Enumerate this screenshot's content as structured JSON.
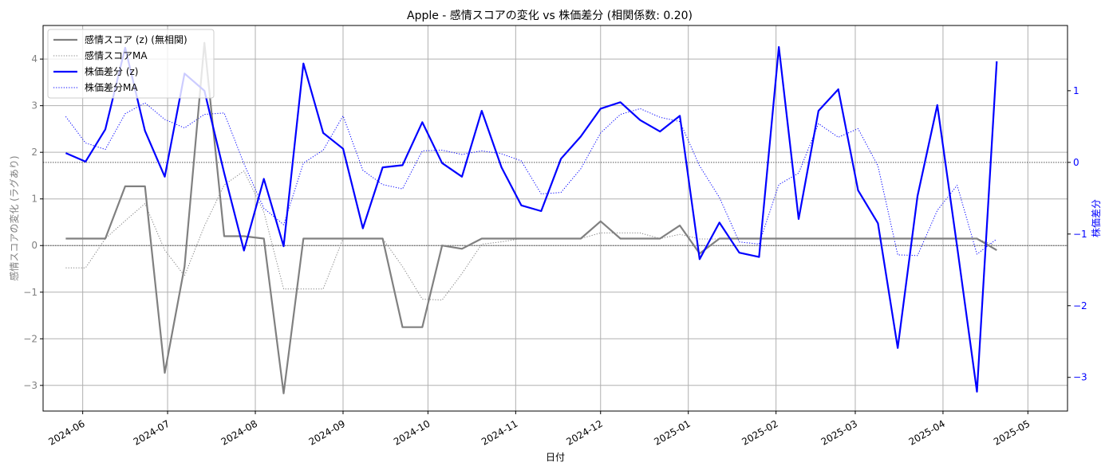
{
  "chart_data": {
    "type": "line",
    "title": "Apple - 感情スコアの変化 vs 株価差分 (相関係数: 0.20)",
    "xlabel": "日付",
    "ylabel_left": "感情スコアの変化 (ラグあり)",
    "ylabel_right": "株価差分",
    "ylim_left": [
      -3.55,
      4.72
    ],
    "ylim_right": [
      -3.47,
      1.91
    ],
    "xlim": [
      "2024-05-18",
      "2025-05-15"
    ],
    "grid": true,
    "legend_position": "top-left",
    "x_ticks": [
      "2024-06-01",
      "2024-07-01",
      "2024-08-01",
      "2024-09-01",
      "2024-10-01",
      "2024-11-01",
      "2024-12-01",
      "2025-01-01",
      "2025-02-01",
      "2025-03-01",
      "2025-04-01",
      "2025-05-01"
    ],
    "x_tick_labels": [
      "2024-06",
      "2024-07",
      "2024-08",
      "2024-09",
      "2024-10",
      "2024-11",
      "2024-12",
      "2025-01",
      "2025-02",
      "2025-03",
      "2025-04",
      "2025-05"
    ],
    "left_ticks": [
      -3,
      -2,
      -1,
      0,
      1,
      2,
      3,
      4
    ],
    "left_tick_labels": [
      "−3",
      "−2",
      "−1",
      "0",
      "1",
      "2",
      "3",
      "4"
    ],
    "right_ticks": [
      -3,
      -2,
      -1,
      0,
      1
    ],
    "right_tick_labels": [
      "−3",
      "−2",
      "−1",
      "0",
      "1"
    ],
    "reference_lines": [
      {
        "axis": "left",
        "value": 0
      },
      {
        "axis": "right",
        "value": 0
      }
    ],
    "x": [
      "2024-05-26",
      "2024-06-02",
      "2024-06-09",
      "2024-06-16",
      "2024-06-23",
      "2024-06-30",
      "2024-07-07",
      "2024-07-14",
      "2024-07-21",
      "2024-07-28",
      "2024-08-04",
      "2024-08-11",
      "2024-08-18",
      "2024-08-25",
      "2024-09-01",
      "2024-09-08",
      "2024-09-15",
      "2024-09-22",
      "2024-09-29",
      "2024-10-06",
      "2024-10-13",
      "2024-10-20",
      "2024-10-27",
      "2024-11-03",
      "2024-11-10",
      "2024-11-17",
      "2024-11-24",
      "2024-12-01",
      "2024-12-08",
      "2024-12-15",
      "2024-12-22",
      "2024-12-29",
      "2025-01-05",
      "2025-01-12",
      "2025-01-19",
      "2025-01-26",
      "2025-02-02",
      "2025-02-09",
      "2025-02-16",
      "2025-02-23",
      "2025-03-02",
      "2025-03-09",
      "2025-03-16",
      "2025-03-23",
      "2025-03-30",
      "2025-04-06",
      "2025-04-13",
      "2025-04-20"
    ],
    "series": [
      {
        "name": "感情スコア (z) (無相関)",
        "axis": "left",
        "color": "#808080",
        "style": "solid",
        "values": [
          0.15,
          0.15,
          0.15,
          1.27,
          1.27,
          -2.73,
          -0.45,
          4.35,
          0.2,
          0.2,
          0.15,
          -3.17,
          0.15,
          0.15,
          0.15,
          0.15,
          0.15,
          -1.75,
          -1.75,
          0.0,
          -0.07,
          0.15,
          0.15,
          0.15,
          0.15,
          0.15,
          0.15,
          0.52,
          0.15,
          0.15,
          0.15,
          0.43,
          -0.17,
          0.15,
          0.15,
          0.15,
          0.15,
          0.15,
          0.15,
          0.15,
          0.15,
          0.15,
          0.15,
          0.15,
          0.15,
          0.15,
          0.15,
          -0.1
        ]
      },
      {
        "name": "感情スコアMA",
        "axis": "left",
        "color": "#808080",
        "style": "dotted",
        "values": [
          -0.48,
          -0.48,
          0.15,
          0.53,
          0.9,
          -0.1,
          -0.65,
          0.42,
          1.3,
          1.6,
          0.72,
          -0.93,
          -0.93,
          -0.93,
          0.15,
          0.15,
          0.15,
          -0.45,
          -1.15,
          -1.17,
          -0.6,
          0.03,
          0.08,
          0.15,
          0.15,
          0.15,
          0.15,
          0.27,
          0.27,
          0.27,
          0.15,
          0.24,
          0.14,
          0.14,
          0.15,
          0.15,
          0.15,
          0.15,
          0.15,
          0.15,
          0.15,
          0.15,
          0.15,
          0.15,
          0.15,
          0.15,
          0.15,
          -0.02
        ]
      },
      {
        "name": "株価差分 (z)",
        "axis": "right",
        "color": "#0000ff",
        "style": "solid",
        "values": [
          0.13,
          0.01,
          0.46,
          1.6,
          0.44,
          -0.2,
          1.24,
          1.0,
          -0.15,
          -1.23,
          -0.23,
          -1.17,
          1.38,
          0.41,
          0.19,
          -0.92,
          -0.07,
          -0.04,
          0.56,
          -0.01,
          -0.2,
          0.72,
          -0.07,
          -0.6,
          -0.68,
          0.05,
          0.36,
          0.75,
          0.84,
          0.59,
          0.43,
          0.65,
          -1.35,
          -0.84,
          -1.26,
          -1.32,
          1.61,
          -0.79,
          0.72,
          1.02,
          -0.39,
          -0.85,
          -2.59,
          -0.47,
          0.8,
          -1.18,
          -3.2,
          1.41
        ]
      },
      {
        "name": "株価差分MA",
        "axis": "right",
        "color": "#0000ff",
        "style": "dotted",
        "values": [
          0.64,
          0.27,
          0.18,
          0.68,
          0.83,
          0.6,
          0.48,
          0.67,
          0.69,
          -0.02,
          -0.64,
          -0.87,
          -0.01,
          0.17,
          0.65,
          -0.11,
          -0.31,
          -0.37,
          0.16,
          0.17,
          0.11,
          0.16,
          0.12,
          0.02,
          -0.44,
          -0.42,
          -0.09,
          0.41,
          0.67,
          0.75,
          0.63,
          0.57,
          -0.05,
          -0.49,
          -1.11,
          -1.14,
          -0.31,
          -0.15,
          0.54,
          0.35,
          0.47,
          -0.05,
          -1.29,
          -1.3,
          -0.67,
          -0.32,
          -1.28,
          -1.07
        ]
      }
    ]
  }
}
